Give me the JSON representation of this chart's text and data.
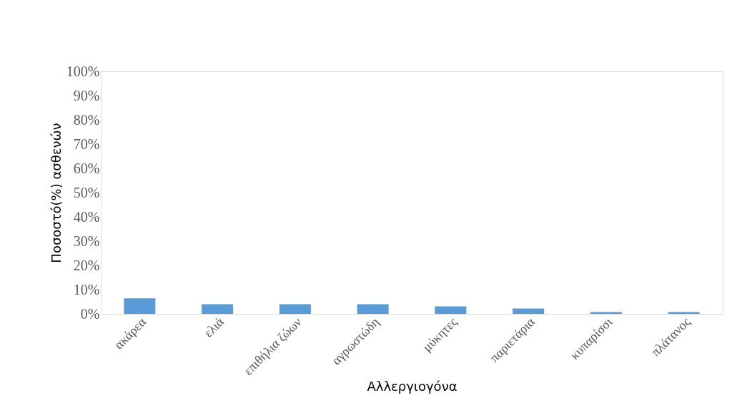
{
  "chart_data": {
    "type": "bar",
    "xlabel": "Αλλεργιογόνα",
    "ylabel": "Ποσοστό(%) ασθενών",
    "categories": [
      "ακάρεα",
      "ελιά",
      "επιθήλια ζώων",
      "αγρωστώδη",
      "μύκητες",
      "παριετάρια",
      "κυπαρίσσι",
      "πλάτανος"
    ],
    "values": [
      6.4,
      4.0,
      4.0,
      4.0,
      3.1,
      2.2,
      0.7,
      0.7
    ],
    "color": "#5b9bd5",
    "ylim": [
      0,
      100
    ],
    "yticks": [
      {
        "value": 0,
        "label": "0%"
      },
      {
        "value": 10,
        "label": "10%"
      },
      {
        "value": 20,
        "label": "20%"
      },
      {
        "value": 30,
        "label": "30%"
      },
      {
        "value": 40,
        "label": "40%"
      },
      {
        "value": 50,
        "label": "50%"
      },
      {
        "value": 60,
        "label": "60%"
      },
      {
        "value": 70,
        "label": "70%"
      },
      {
        "value": 80,
        "label": "80%"
      },
      {
        "value": 90,
        "label": "90%"
      },
      {
        "value": 100,
        "label": "100%"
      }
    ],
    "grid": false
  }
}
